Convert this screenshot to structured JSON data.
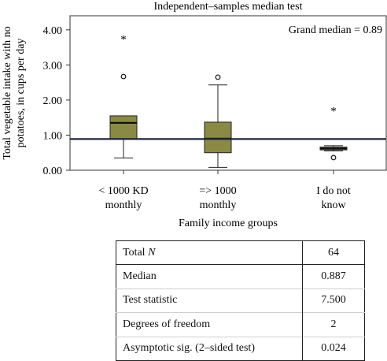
{
  "chart_data": {
    "type": "boxplot",
    "title": "Independent–samples median test",
    "xlabel": "Family income groups",
    "ylabel_lines": [
      "Total vegetable intake with no",
      "potatoes, in cups per day"
    ],
    "ylim": [
      0,
      4.4
    ],
    "yticks": [
      0.0,
      1.0,
      2.0,
      3.0,
      4.0
    ],
    "ytick_labels": [
      "0.00",
      "1.00",
      "2.00",
      "3.00",
      "4.00"
    ],
    "grand_median_label": "Grand median = 0.89",
    "grand_median": 0.89,
    "box_color": "#8b8a45",
    "median_line_color": "#1b2544",
    "categories": [
      {
        "label_lines": [
          "< 1000 KD",
          "monthly"
        ],
        "whisker_low": 0.35,
        "q1": 0.9,
        "median": 1.35,
        "q3": 1.55,
        "whisker_high": 1.55,
        "outliers": [
          {
            "value": 2.67,
            "marker": "o"
          },
          {
            "value": 3.76,
            "marker": "*"
          }
        ]
      },
      {
        "label_lines": [
          "=> 1000",
          "monthly"
        ],
        "whisker_low": 0.08,
        "q1": 0.5,
        "median": 0.9,
        "q3": 1.37,
        "whisker_high": 2.43,
        "outliers": [
          {
            "value": 2.65,
            "marker": "o"
          }
        ]
      },
      {
        "label_lines": [
          "I do not",
          "know"
        ],
        "whisker_low": 0.55,
        "q1": 0.58,
        "median": 0.62,
        "q3": 0.66,
        "whisker_high": 0.7,
        "outliers": [
          {
            "value": 0.36,
            "marker": "o"
          },
          {
            "value": 1.72,
            "marker": "*"
          }
        ]
      }
    ]
  },
  "stats_table": {
    "rows": [
      {
        "label": "Total ",
        "label_italic": "N",
        "value": "64"
      },
      {
        "label": "Median",
        "label_italic": "",
        "value": "0.887"
      },
      {
        "label": "Test statistic",
        "label_italic": "",
        "value": "7.500"
      },
      {
        "label": "Degrees of freedom",
        "label_italic": "",
        "value": "2"
      },
      {
        "label": "Asymptotic sig. (2–sided test)",
        "label_italic": "",
        "value": "0.024"
      }
    ]
  }
}
